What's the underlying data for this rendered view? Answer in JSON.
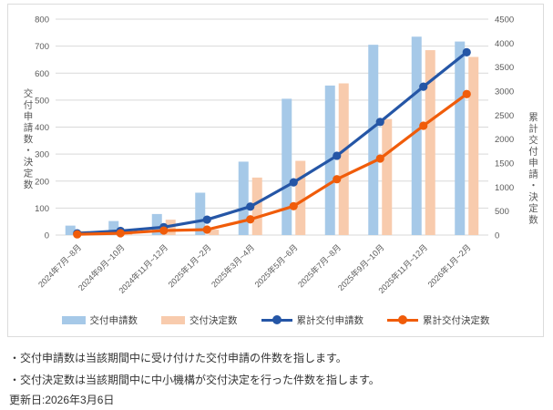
{
  "page": {
    "notes": [
      "・交付申請数は当該期間中に受け付けた交付申請の件数を指します。",
      "・交付決定数は当該期間中に中小機構が交付決定を行った件数を指します。"
    ],
    "updated": "更新日:2026年3月6日"
  },
  "colors": {
    "bar_applications": "#A6C9E8",
    "bar_decisions": "#F8CBAD",
    "line_cum_applications": "#2556A6",
    "line_cum_decisions": "#F05C0A",
    "grid": "#D9D9D9",
    "axis_text": "#595959",
    "note_text": "#333333",
    "card_border": "#DCDCDC"
  },
  "chart_data": {
    "type": "bar",
    "subtype": "combo-bar-line-dual-axis",
    "categories": [
      "2024年7月~8月",
      "2024年9月~10月",
      "2024年11月~12月",
      "2025年1月~2月",
      "2025年3月~4月",
      "2025年5月~6月",
      "2025年7月~8月",
      "2025年9月~10月",
      "2025年11月~12月",
      "2026年1月~2月"
    ],
    "series": [
      {
        "name": "交付申請数",
        "type": "bar",
        "axis": "left",
        "values": [
          35,
          52,
          78,
          157,
          272,
          505,
          554,
          705,
          735,
          717
        ]
      },
      {
        "name": "交付決定数",
        "type": "bar",
        "axis": "left",
        "values": [
          15,
          22,
          57,
          20,
          213,
          275,
          562,
          430,
          685,
          660
        ]
      },
      {
        "name": "累計交付申請数",
        "type": "line",
        "axis": "right",
        "values": [
          35,
          87,
          165,
          322,
          594,
          1099,
          1653,
          2358,
          3093,
          3810
        ]
      },
      {
        "name": "累計交付決定数",
        "type": "line",
        "axis": "right",
        "values": [
          15,
          37,
          94,
          114,
          327,
          602,
          1164,
          1594,
          2279,
          2939
        ]
      }
    ],
    "left_axis": {
      "title": "交付申請数・決定数",
      "min": 0,
      "max": 800,
      "step": 100
    },
    "right_axis": {
      "title": "累計交付申請・決定数",
      "min": 0,
      "max": 4500,
      "step": 500
    },
    "legend_position": "bottom",
    "grid": true
  }
}
